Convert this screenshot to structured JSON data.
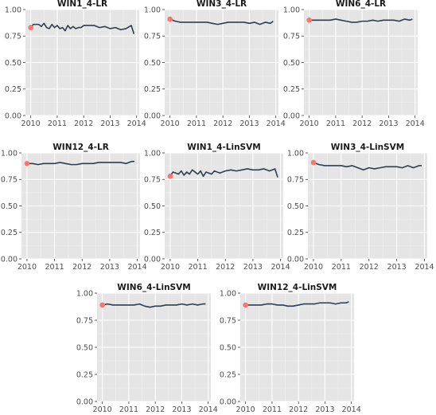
{
  "style": {
    "panel_bg": "#e5e5e5",
    "grid_major": "#ffffff",
    "grid_minor": "#f0f0f0",
    "line_color": "#2e3d52",
    "start_point_color": "#f8766d",
    "tick_color": "#333333"
  },
  "chart_data": [
    {
      "type": "line",
      "title": "WIN1_4-LR",
      "x_ticks": [
        "2010",
        "2011",
        "2012",
        "2013",
        "2014"
      ],
      "y_ticks": [
        "0.00",
        "0.25",
        "0.50",
        "0.75",
        "1.00"
      ],
      "xlim": [
        2009.8,
        2014.1
      ],
      "ylim": [
        0,
        1
      ],
      "grid": true,
      "start_point": {
        "x": 2010.0,
        "y": 0.83
      },
      "x": [
        2010.0,
        2010.1,
        2010.2,
        2010.3,
        2010.4,
        2010.5,
        2010.6,
        2010.7,
        2010.8,
        2010.9,
        2011.0,
        2011.1,
        2011.2,
        2011.3,
        2011.4,
        2011.5,
        2011.6,
        2011.7,
        2011.8,
        2011.9,
        2012.0,
        2012.2,
        2012.4,
        2012.6,
        2012.8,
        2013.0,
        2013.2,
        2013.4,
        2013.6,
        2013.8,
        2013.9
      ],
      "y": [
        0.83,
        0.86,
        0.86,
        0.86,
        0.84,
        0.87,
        0.83,
        0.82,
        0.86,
        0.83,
        0.85,
        0.82,
        0.83,
        0.8,
        0.85,
        0.82,
        0.84,
        0.82,
        0.83,
        0.83,
        0.85,
        0.85,
        0.85,
        0.83,
        0.84,
        0.82,
        0.83,
        0.81,
        0.82,
        0.85,
        0.77
      ]
    },
    {
      "type": "line",
      "title": "WIN3_4-LR",
      "x_ticks": [
        "2010",
        "2011",
        "2012",
        "2013",
        "2014"
      ],
      "y_ticks": [
        "0.00",
        "0.25",
        "0.50",
        "0.75",
        "1.00"
      ],
      "xlim": [
        2009.8,
        2014.1
      ],
      "ylim": [
        0,
        1
      ],
      "grid": true,
      "start_point": {
        "x": 2010.0,
        "y": 0.91
      },
      "x": [
        2010.0,
        2010.2,
        2010.4,
        2010.6,
        2010.8,
        2011.0,
        2011.2,
        2011.4,
        2011.6,
        2011.8,
        2012.0,
        2012.2,
        2012.4,
        2012.6,
        2012.8,
        2013.0,
        2013.2,
        2013.4,
        2013.6,
        2013.8,
        2013.9
      ],
      "y": [
        0.91,
        0.89,
        0.88,
        0.88,
        0.88,
        0.88,
        0.88,
        0.88,
        0.87,
        0.86,
        0.87,
        0.88,
        0.88,
        0.88,
        0.88,
        0.87,
        0.88,
        0.86,
        0.88,
        0.87,
        0.89
      ]
    },
    {
      "type": "line",
      "title": "WIN6_4-LR",
      "x_ticks": [
        "2010",
        "2011",
        "2012",
        "2013",
        "2014"
      ],
      "y_ticks": [
        "0.00",
        "0.25",
        "0.50",
        "0.75",
        "1.00"
      ],
      "xlim": [
        2009.8,
        2014.1
      ],
      "ylim": [
        0,
        1
      ],
      "grid": true,
      "start_point": {
        "x": 2010.0,
        "y": 0.9
      },
      "x": [
        2010.0,
        2010.2,
        2010.4,
        2010.6,
        2010.8,
        2011.0,
        2011.2,
        2011.4,
        2011.6,
        2011.8,
        2012.0,
        2012.2,
        2012.4,
        2012.6,
        2012.8,
        2013.0,
        2013.2,
        2013.4,
        2013.6,
        2013.8,
        2013.9
      ],
      "y": [
        0.9,
        0.9,
        0.9,
        0.9,
        0.9,
        0.91,
        0.9,
        0.89,
        0.88,
        0.88,
        0.89,
        0.89,
        0.9,
        0.89,
        0.9,
        0.9,
        0.9,
        0.89,
        0.91,
        0.9,
        0.91
      ]
    },
    {
      "type": "line",
      "title": "WIN12_4-LR",
      "x_ticks": [
        "2010",
        "2011",
        "2012",
        "2013",
        "2014"
      ],
      "y_ticks": [
        "0.00",
        "0.25",
        "0.50",
        "0.75",
        "1.00"
      ],
      "xlim": [
        2009.8,
        2014.1
      ],
      "ylim": [
        0,
        1
      ],
      "grid": true,
      "start_point": {
        "x": 2010.0,
        "y": 0.9
      },
      "x": [
        2010.0,
        2010.2,
        2010.4,
        2010.6,
        2010.8,
        2011.0,
        2011.2,
        2011.4,
        2011.6,
        2011.8,
        2012.0,
        2012.2,
        2012.4,
        2012.6,
        2012.8,
        2013.0,
        2013.2,
        2013.4,
        2013.6,
        2013.8,
        2013.9
      ],
      "y": [
        0.9,
        0.9,
        0.89,
        0.9,
        0.9,
        0.9,
        0.91,
        0.9,
        0.89,
        0.89,
        0.9,
        0.9,
        0.9,
        0.91,
        0.91,
        0.91,
        0.91,
        0.91,
        0.9,
        0.92,
        0.92
      ]
    },
    {
      "type": "line",
      "title": "WIN1_4-LinSVM",
      "x_ticks": [
        "2010",
        "2011",
        "2012",
        "2013",
        "2014"
      ],
      "y_ticks": [
        "0.00",
        "0.25",
        "0.50",
        "0.75",
        "1.00"
      ],
      "xlim": [
        2009.8,
        2014.1
      ],
      "ylim": [
        0,
        1
      ],
      "grid": true,
      "start_point": {
        "x": 2010.0,
        "y": 0.78
      },
      "x": [
        2010.0,
        2010.1,
        2010.2,
        2010.3,
        2010.4,
        2010.5,
        2010.6,
        2010.7,
        2010.8,
        2010.9,
        2011.0,
        2011.1,
        2011.2,
        2011.3,
        2011.4,
        2011.5,
        2011.6,
        2011.7,
        2011.8,
        2011.9,
        2012.0,
        2012.2,
        2012.4,
        2012.6,
        2012.8,
        2013.0,
        2013.2,
        2013.4,
        2013.6,
        2013.8,
        2013.9
      ],
      "y": [
        0.78,
        0.82,
        0.81,
        0.8,
        0.83,
        0.79,
        0.82,
        0.8,
        0.84,
        0.82,
        0.8,
        0.83,
        0.78,
        0.82,
        0.81,
        0.8,
        0.83,
        0.82,
        0.81,
        0.82,
        0.83,
        0.84,
        0.83,
        0.84,
        0.85,
        0.84,
        0.84,
        0.85,
        0.83,
        0.85,
        0.77
      ]
    },
    {
      "type": "line",
      "title": "WIN3_4-LinSVM",
      "x_ticks": [
        "2010",
        "2011",
        "2012",
        "2013",
        "2014"
      ],
      "y_ticks": [
        "0.00",
        "0.25",
        "0.50",
        "0.75",
        "1.00"
      ],
      "xlim": [
        2009.8,
        2014.1
      ],
      "ylim": [
        0,
        1
      ],
      "grid": true,
      "start_point": {
        "x": 2010.0,
        "y": 0.91
      },
      "x": [
        2010.0,
        2010.2,
        2010.4,
        2010.6,
        2010.8,
        2011.0,
        2011.2,
        2011.4,
        2011.6,
        2011.8,
        2012.0,
        2012.2,
        2012.4,
        2012.6,
        2012.8,
        2013.0,
        2013.2,
        2013.4,
        2013.6,
        2013.8,
        2013.9
      ],
      "y": [
        0.91,
        0.89,
        0.88,
        0.88,
        0.88,
        0.88,
        0.87,
        0.88,
        0.86,
        0.84,
        0.86,
        0.85,
        0.86,
        0.87,
        0.87,
        0.87,
        0.86,
        0.88,
        0.86,
        0.88,
        0.88
      ]
    },
    {
      "type": "line",
      "title": "WIN6_4-LinSVM",
      "x_ticks": [
        "2010",
        "2011",
        "2012",
        "2013",
        "2014"
      ],
      "y_ticks": [
        "0.00",
        "0.25",
        "0.50",
        "0.75",
        "1.00"
      ],
      "xlim": [
        2009.8,
        2014.1
      ],
      "ylim": [
        0,
        1
      ],
      "grid": true,
      "start_point": {
        "x": 2010.0,
        "y": 0.89
      },
      "x": [
        2010.0,
        2010.2,
        2010.4,
        2010.6,
        2010.8,
        2011.0,
        2011.2,
        2011.4,
        2011.6,
        2011.8,
        2012.0,
        2012.2,
        2012.4,
        2012.6,
        2012.8,
        2013.0,
        2013.2,
        2013.4,
        2013.6,
        2013.8,
        2013.9
      ],
      "y": [
        0.89,
        0.9,
        0.89,
        0.89,
        0.89,
        0.89,
        0.89,
        0.9,
        0.88,
        0.87,
        0.88,
        0.88,
        0.89,
        0.89,
        0.89,
        0.9,
        0.89,
        0.9,
        0.89,
        0.9,
        0.9
      ]
    },
    {
      "type": "line",
      "title": "WIN12_4-LinSVM",
      "x_ticks": [
        "2010",
        "2011",
        "2012",
        "2013",
        "2014"
      ],
      "y_ticks": [
        "0.00",
        "0.25",
        "0.50",
        "0.75",
        "1.00"
      ],
      "xlim": [
        2009.8,
        2014.1
      ],
      "ylim": [
        0,
        1
      ],
      "grid": true,
      "start_point": {
        "x": 2010.0,
        "y": 0.89
      },
      "x": [
        2010.0,
        2010.2,
        2010.4,
        2010.6,
        2010.8,
        2011.0,
        2011.2,
        2011.4,
        2011.6,
        2011.8,
        2012.0,
        2012.2,
        2012.4,
        2012.6,
        2012.8,
        2013.0,
        2013.2,
        2013.4,
        2013.6,
        2013.8,
        2013.9
      ],
      "y": [
        0.89,
        0.89,
        0.89,
        0.89,
        0.9,
        0.9,
        0.89,
        0.89,
        0.88,
        0.88,
        0.89,
        0.9,
        0.9,
        0.9,
        0.91,
        0.91,
        0.91,
        0.9,
        0.91,
        0.91,
        0.92
      ]
    }
  ]
}
